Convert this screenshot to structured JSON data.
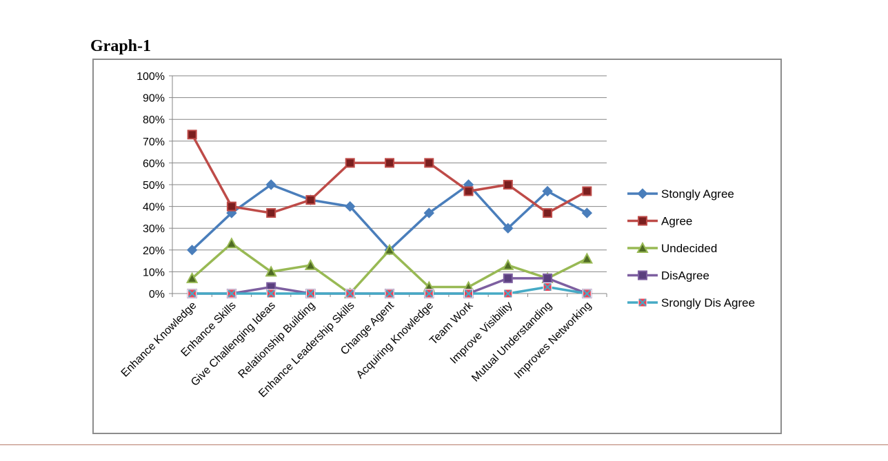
{
  "heading": "Graph-1",
  "chart_data": {
    "type": "line",
    "categories": [
      "Enhance Knowledge",
      "Enhance Skills",
      "Give Challenging Ideas",
      "Relationship Building",
      "Enhance Leadership Skills",
      "Change Agent",
      "Acquiring Knowledge",
      "Team Work",
      "Improve Visibility",
      "Mutual Understanding",
      "Improves Networking"
    ],
    "ylim": [
      0,
      100
    ],
    "yticks": [
      0,
      10,
      20,
      30,
      40,
      50,
      60,
      70,
      80,
      90,
      100
    ],
    "ytick_labels": [
      "0%",
      "10%",
      "20%",
      "30%",
      "40%",
      "50%",
      "60%",
      "70%",
      "80%",
      "90%",
      "100%"
    ],
    "grid": true,
    "legend_position": "right",
    "series": [
      {
        "name": "Stongly Agree",
        "color": "#4a7ebb",
        "marker": "diamond",
        "values": [
          20,
          37,
          50,
          43,
          40,
          20,
          37,
          50,
          30,
          47,
          37
        ]
      },
      {
        "name": "Agree",
        "color": "#be4b48",
        "marker": "square",
        "values": [
          73,
          40,
          37,
          43,
          60,
          60,
          60,
          47,
          50,
          37,
          47
        ]
      },
      {
        "name": "Undecided",
        "color": "#98b954",
        "marker": "triangle",
        "values": [
          7,
          23,
          10,
          13,
          0,
          20,
          3,
          3,
          13,
          7,
          16
        ]
      },
      {
        "name": "DisAgree",
        "color": "#7d5fa0",
        "marker": "square",
        "values": [
          0,
          0,
          3,
          0,
          0,
          0,
          0,
          0,
          7,
          7,
          0
        ]
      },
      {
        "name": "Srongly Dis Agree",
        "color": "#46aac5",
        "marker": "x",
        "values": [
          0,
          0,
          0,
          0,
          0,
          0,
          0,
          0,
          0,
          3,
          0
        ]
      }
    ]
  }
}
